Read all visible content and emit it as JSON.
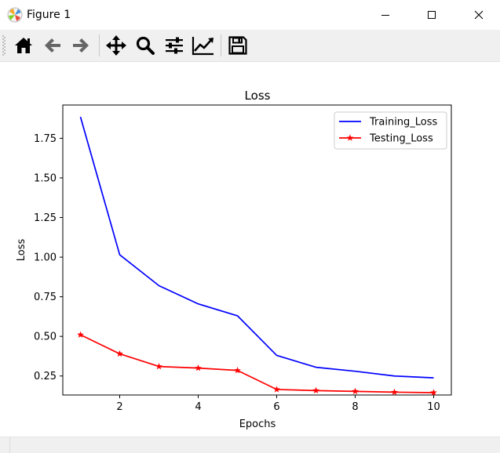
{
  "window": {
    "title": "Figure 1",
    "minimize_label": "Minimize",
    "maximize_label": "Maximize",
    "close_label": "Close"
  },
  "toolbar": {
    "buttons": [
      {
        "name": "home",
        "icon": "home-icon"
      },
      {
        "name": "back",
        "icon": "arrow-left-icon"
      },
      {
        "name": "forward",
        "icon": "arrow-right-icon"
      },
      {
        "name": "pan",
        "icon": "move-arrows-icon"
      },
      {
        "name": "zoom",
        "icon": "magnifier-icon"
      },
      {
        "name": "configure-subplots",
        "icon": "sliders-icon"
      },
      {
        "name": "edit-axis",
        "icon": "line-chart-icon"
      },
      {
        "name": "save",
        "icon": "floppy-disk-icon"
      }
    ]
  },
  "status": {
    "text": ""
  },
  "chart_data": {
    "type": "line",
    "title": "Loss",
    "xlabel": "Epochs",
    "ylabel": "Loss",
    "x": [
      1,
      2,
      3,
      4,
      5,
      6,
      7,
      8,
      9,
      10
    ],
    "xlim": [
      0.55,
      10.45
    ],
    "ylim": [
      0.13,
      1.96
    ],
    "xticks": [
      2,
      4,
      6,
      8,
      10
    ],
    "xtick_labels": [
      "2",
      "4",
      "6",
      "8",
      "10"
    ],
    "yticks": [
      0.25,
      0.5,
      0.75,
      1.0,
      1.25,
      1.5,
      1.75
    ],
    "ytick_labels": [
      "0.25",
      "0.50",
      "0.75",
      "1.00",
      "1.25",
      "1.50",
      "1.75"
    ],
    "grid": false,
    "legend_position": "top-right",
    "series": [
      {
        "name": "Training_Loss",
        "color": "#0000ff",
        "marker": "none",
        "values": [
          1.885,
          1.015,
          0.82,
          0.705,
          0.63,
          0.38,
          0.305,
          0.28,
          0.25,
          0.238
        ]
      },
      {
        "name": "Testing_Loss",
        "color": "#ff0000",
        "marker": "star",
        "values": [
          0.51,
          0.39,
          0.31,
          0.3,
          0.285,
          0.165,
          0.158,
          0.153,
          0.148,
          0.145
        ]
      }
    ]
  }
}
